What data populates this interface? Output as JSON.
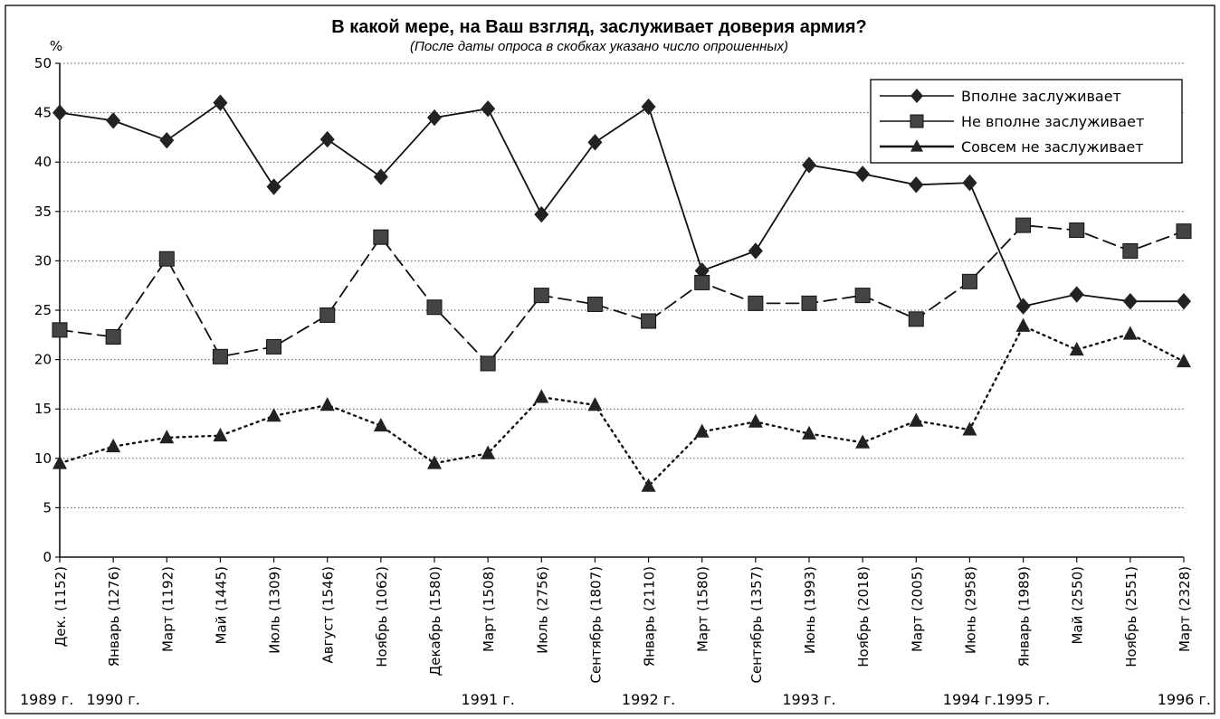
{
  "chart_data": {
    "type": "line",
    "title": "В какой мере, на Ваш взгляд, заслуживает доверия армия?",
    "subtitle": "(После даты опроса в скобках указано число опрошенных)",
    "ylabel": "%",
    "ylim": [
      0,
      50
    ],
    "yticks": [
      "0",
      "5",
      "10",
      "15",
      "20",
      "25",
      "30",
      "35",
      "40",
      "45",
      "50"
    ],
    "grid": "horizontal dotted",
    "legend_position": "top-right",
    "categories": [
      "Дек. (1152)",
      "Январь (1276)",
      "Март (1192)",
      "Май (1445)",
      "Июль (1309)",
      "Август (1546)",
      "Ноябрь (1062)",
      "Декабрь (1580)",
      "Март (1508)",
      "Июль (2756)",
      "Сентябрь (1807)",
      "Январь (2110)",
      "Март (1580)",
      "Сентябрь (1357)",
      "Июнь (1993)",
      "Ноябрь (2018)",
      "Март (2005)",
      "Июнь (2958)",
      "Январь (1989)",
      "Май (2550)",
      "Ноябрь (2551)",
      "Март (2328)"
    ],
    "years": [
      {
        "label": "1989 г.",
        "index": 0
      },
      {
        "label": "1990 г.",
        "index": 1
      },
      {
        "label": "1991 г.",
        "index": 8
      },
      {
        "label": "1992 г.",
        "index": 11
      },
      {
        "label": "1993 г.",
        "index": 14
      },
      {
        "label": "1994 г.",
        "index": 17
      },
      {
        "label": "1995 г.",
        "index": 18
      },
      {
        "label": "1996 г.",
        "index": 21
      }
    ],
    "series": [
      {
        "name": "Вполне заслуживает",
        "marker": "diamond",
        "line": "solid",
        "values": [
          45,
          44.2,
          42.2,
          46,
          37.5,
          42.3,
          38.5,
          44.5,
          45.4,
          34.7,
          42,
          45.6,
          29,
          31,
          39.7,
          38.8,
          37.7,
          37.9,
          25.4,
          26.6,
          25.9,
          25.9
        ]
      },
      {
        "name": "Не вполне заслуживает",
        "marker": "square",
        "line": "dashed",
        "values": [
          23,
          22.3,
          30.2,
          20.3,
          21.3,
          24.5,
          32.4,
          25.3,
          19.6,
          26.5,
          25.6,
          23.9,
          27.8,
          25.7,
          25.7,
          26.5,
          24.1,
          27.9,
          33.6,
          33.1,
          31,
          33
        ]
      },
      {
        "name": "Совсем не заслуживает",
        "marker": "triangle",
        "line": "dotted",
        "values": [
          9.5,
          11.2,
          12.1,
          12.3,
          14.3,
          15.4,
          13.3,
          9.5,
          10.5,
          16.2,
          15.4,
          7.2,
          12.7,
          13.7,
          12.5,
          11.6,
          13.8,
          12.9,
          23.4,
          21,
          22.6,
          19.8
        ]
      }
    ]
  }
}
